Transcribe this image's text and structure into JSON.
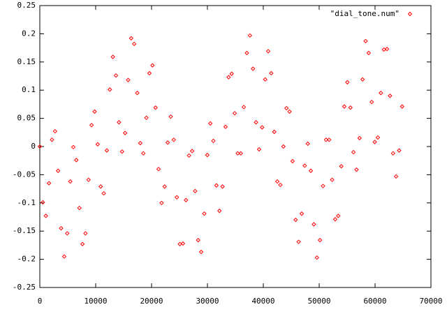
{
  "chart_data": {
    "type": "scatter",
    "legend": "upper right",
    "grid": false,
    "xlim": [
      0,
      70000
    ],
    "xticks": [
      0,
      10000,
      20000,
      30000,
      40000,
      50000,
      60000,
      70000
    ],
    "ylim": [
      -0.25,
      0.25
    ],
    "yticks": [
      -0.25,
      -0.2,
      -0.15,
      -0.1,
      -0.05,
      0,
      0.05,
      0.1,
      0.15,
      0.2,
      0.25
    ],
    "series": [
      {
        "name": "\"dial_tone.num\"",
        "color": "#ff0000",
        "x": [
          0,
          545,
          1090,
          1635,
          2180,
          2725,
          3270,
          3815,
          4360,
          4905,
          5450,
          5995,
          6540,
          7085,
          7630,
          8175,
          8720,
          9265,
          9810,
          10355,
          10900,
          11445,
          11990,
          12535,
          13080,
          13625,
          14170,
          14715,
          15260,
          15805,
          16350,
          16895,
          17440,
          17985,
          18530,
          19075,
          19620,
          20165,
          20710,
          21255,
          21800,
          22345,
          22890,
          23435,
          23980,
          24525,
          25070,
          25615,
          26160,
          26705,
          27250,
          27795,
          28340,
          28885,
          29430,
          29975,
          30520,
          31065,
          31610,
          32155,
          32700,
          33245,
          33790,
          34335,
          34880,
          35425,
          35970,
          36515,
          37060,
          37605,
          38150,
          38695,
          39240,
          39785,
          40330,
          40875,
          41420,
          41965,
          42510,
          43055,
          43600,
          44145,
          44690,
          45235,
          45780,
          46325,
          46870,
          47415,
          47960,
          48505,
          49050,
          49595,
          50140,
          50685,
          51230,
          51775,
          52320,
          52865,
          53410,
          53955,
          54500,
          55045,
          55590,
          56135,
          56680,
          57225,
          57770,
          58315,
          58860,
          59405,
          59950,
          60495,
          61040,
          61585,
          62130,
          62675,
          63220,
          63765,
          64310,
          64855
        ],
        "values": [
          0,
          -0.099,
          -0.123,
          -0.065,
          0.012,
          0.027,
          -0.043,
          -0.145,
          -0.195,
          -0.154,
          -0.062,
          -0.001,
          -0.024,
          -0.109,
          -0.173,
          -0.154,
          -0.059,
          0.038,
          0.062,
          0.004,
          -0.071,
          -0.083,
          -0.007,
          0.101,
          0.159,
          0.126,
          0.043,
          -0.009,
          0.024,
          0.118,
          0.192,
          0.182,
          0.095,
          0.006,
          -0.012,
          0.051,
          0.13,
          0.144,
          0.069,
          -0.04,
          -0.1,
          -0.071,
          0.007,
          0.053,
          0.012,
          -0.09,
          -0.173,
          -0.172,
          -0.095,
          -0.016,
          -0.008,
          -0.079,
          -0.166,
          -0.187,
          -0.119,
          -0.015,
          0.041,
          0.01,
          -0.069,
          -0.114,
          -0.071,
          0.035,
          0.123,
          0.129,
          0.059,
          -0.012,
          -0.012,
          0.07,
          0.166,
          0.197,
          0.138,
          0.043,
          -0.005,
          0.034,
          0.119,
          0.169,
          0.13,
          0.026,
          -0.062,
          -0.068,
          0,
          0.068,
          0.062,
          -0.026,
          -0.13,
          -0.169,
          -0.119,
          -0.034,
          0.005,
          -0.043,
          -0.138,
          -0.197,
          -0.166,
          -0.07,
          0.012,
          0.012,
          -0.059,
          -0.129,
          -0.123,
          -0.035,
          0.071,
          0.114,
          0.069,
          -0.01,
          -0.041,
          0.015,
          0.119,
          0.187,
          0.166,
          0.079,
          0.008,
          0.016,
          0.095,
          0.172,
          0.173,
          0.09,
          -0.012,
          -0.053,
          -0.007,
          0.071
        ]
      }
    ]
  }
}
